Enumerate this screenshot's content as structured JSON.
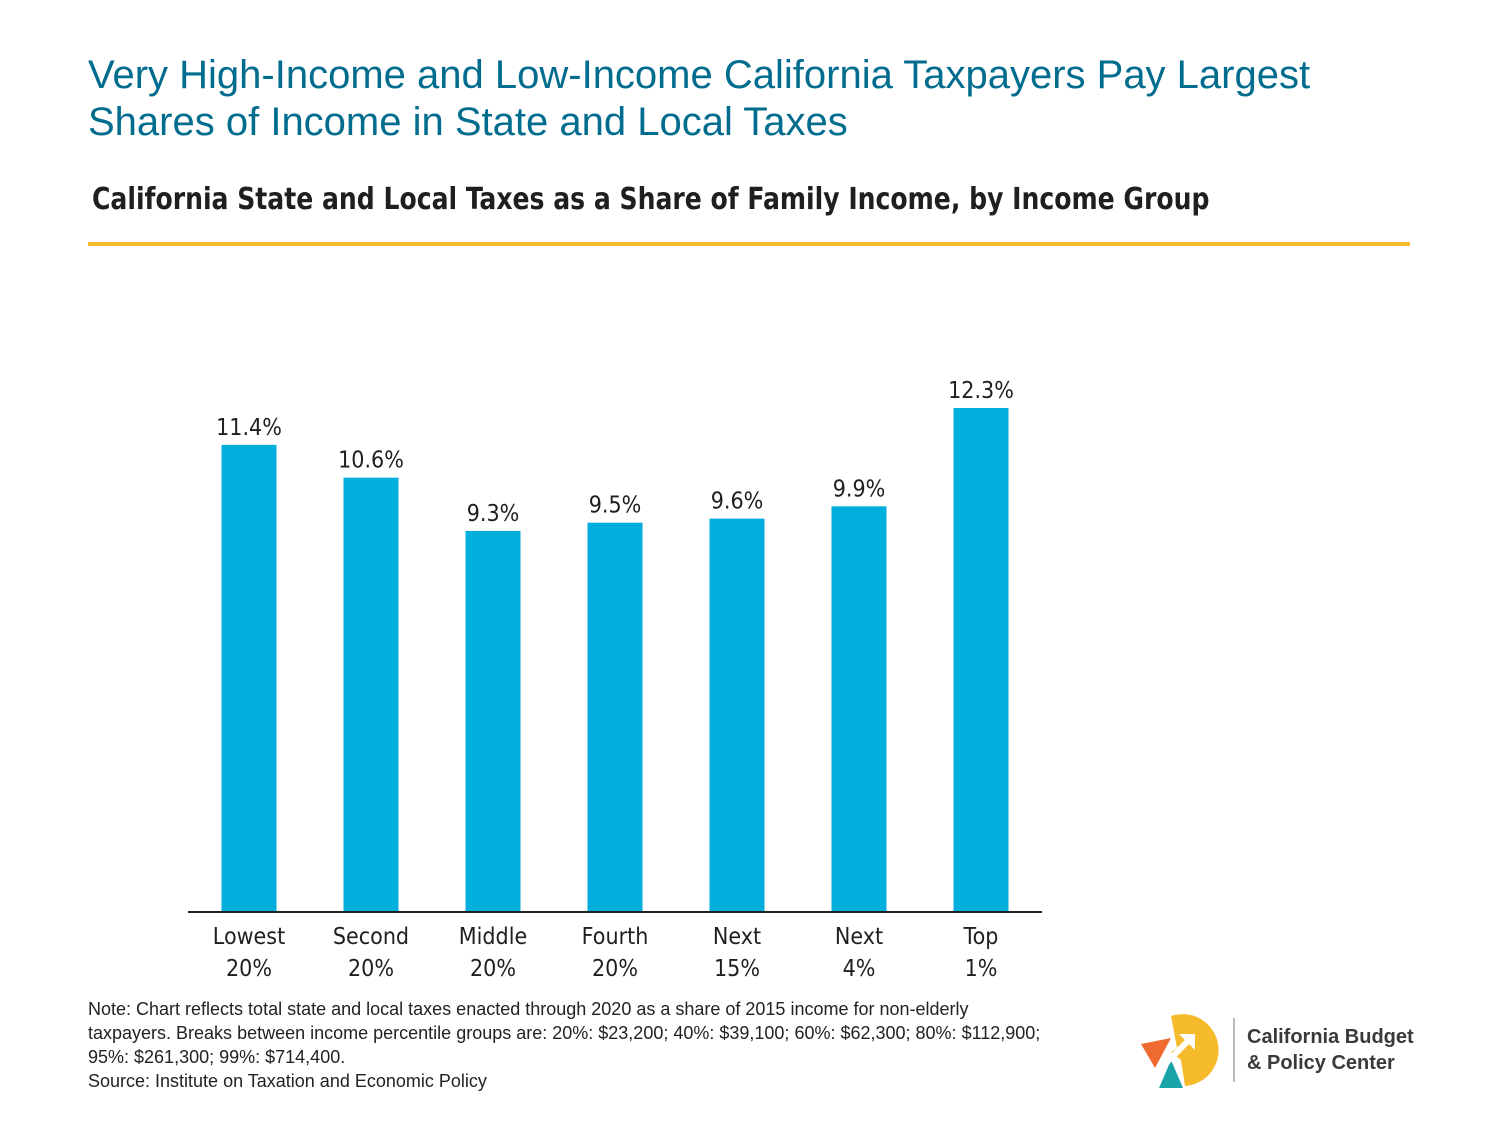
{
  "header": {
    "title": "Very High-Income and Low-Income California Taxpayers Pay Largest Shares of Income in State and Local Taxes",
    "subtitle": "California State and Local Taxes as a Share of Family Income, by Income Group"
  },
  "chart_data": {
    "type": "bar",
    "categories": [
      [
        "Lowest",
        "20%"
      ],
      [
        "Second",
        "20%"
      ],
      [
        "Middle",
        "20%"
      ],
      [
        "Fourth",
        "20%"
      ],
      [
        "Next",
        "15%"
      ],
      [
        "Next",
        "4%"
      ],
      [
        "Top",
        "1%"
      ]
    ],
    "values": [
      11.4,
      10.6,
      9.3,
      9.5,
      9.6,
      9.9,
      12.3
    ],
    "value_labels": [
      "11.4%",
      "10.6%",
      "9.3%",
      "9.5%",
      "9.6%",
      "9.9%",
      "12.3%"
    ],
    "ylim": [
      0,
      12.3
    ],
    "grid": false,
    "bar_color": "#00aedb"
  },
  "note": {
    "text": "Note: Chart reflects total state and local taxes enacted through 2020 as a share of 2015 income for non-elderly taxpayers. Breaks between income percentile groups are: 20%: $23,200; 40%: $39,100; 60%: $62,300; 80%: $112,900; 95%: $261,300; 99%: $714,400.",
    "source": "Source: Institute on Taxation and Economic Policy"
  },
  "logo": {
    "line1": "California Budget",
    "line2": "& Policy Center",
    "icon": "cbpc-logo-icon",
    "colors": {
      "yellow": "#f6bb2a",
      "orange": "#ee6a2e",
      "teal": "#1aa3a8"
    }
  },
  "colors": {
    "title": "#006c8e",
    "rule": "#f6bb2a"
  }
}
